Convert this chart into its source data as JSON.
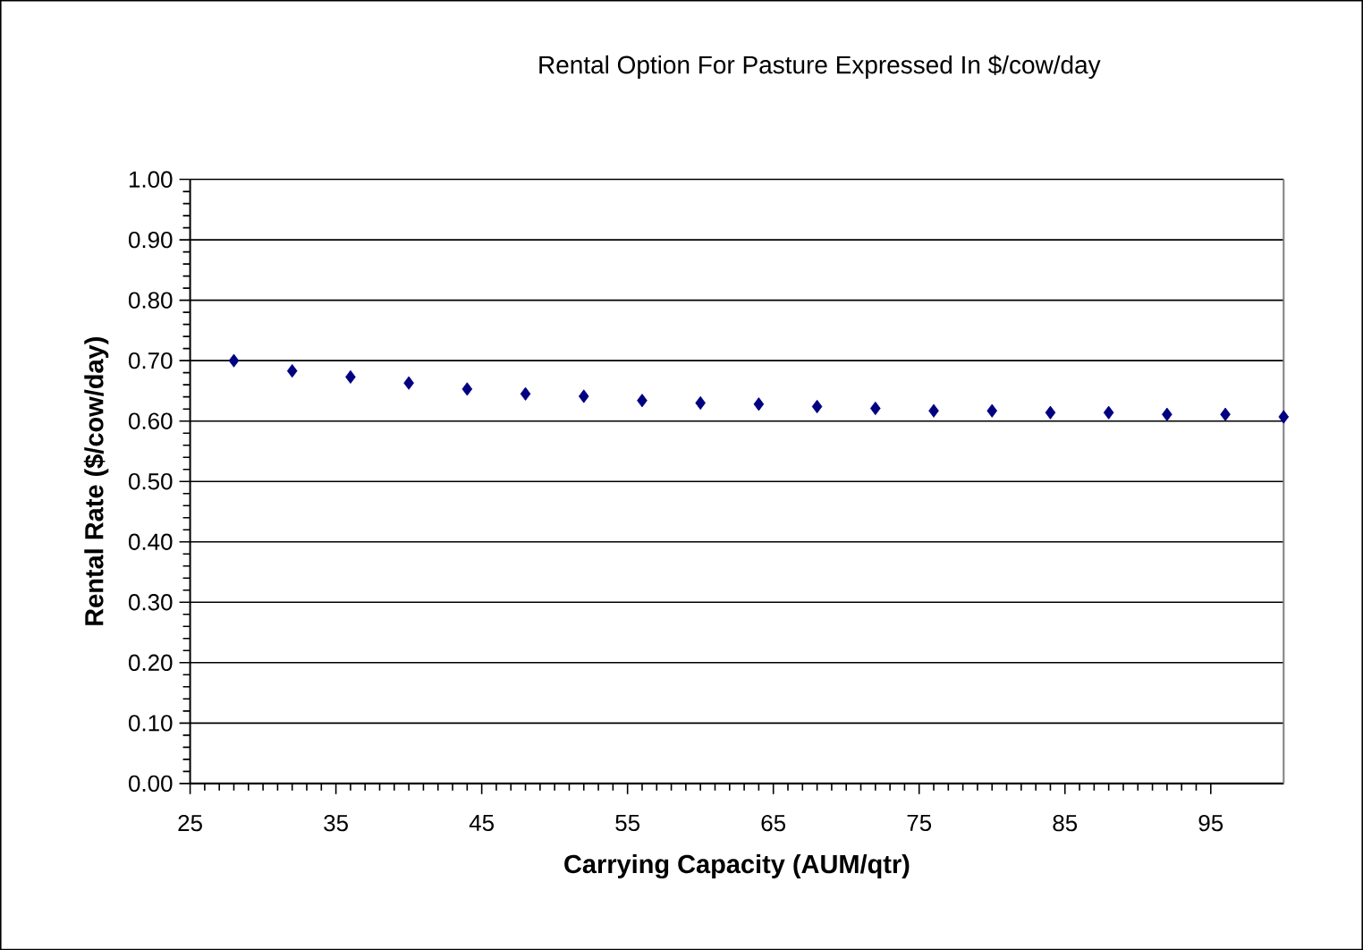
{
  "chart_data": {
    "type": "scatter",
    "title": "Rental Option For Pasture Expressed In $/cow/day",
    "xlabel": "Carrying Capacity (AUM/qtr)",
    "ylabel": "Rental Rate ($/cow/day)",
    "x": [
      28,
      32,
      36,
      40,
      44,
      48,
      52,
      56,
      60,
      64,
      68,
      72,
      76,
      80,
      84,
      88,
      92,
      96,
      100
    ],
    "values": [
      0.7,
      0.683,
      0.673,
      0.663,
      0.653,
      0.645,
      0.641,
      0.634,
      0.63,
      0.628,
      0.624,
      0.621,
      0.617,
      0.617,
      0.614,
      0.614,
      0.611,
      0.611,
      0.607
    ],
    "color": "#000080",
    "marker": "diamond",
    "grid": "y",
    "xlim": [
      25,
      100
    ],
    "xticks": [
      25,
      35,
      45,
      55,
      65,
      75,
      85,
      95
    ],
    "ylim": [
      0,
      1
    ],
    "yticks": [
      {
        "value": 0,
        "label": "0.00"
      },
      {
        "value": 0.1,
        "label": "0.10"
      },
      {
        "value": 0.2,
        "label": "0.20"
      },
      {
        "value": 0.3,
        "label": "0.30"
      },
      {
        "value": 0.4,
        "label": "0.40"
      },
      {
        "value": 0.5,
        "label": "0.50"
      },
      {
        "value": 0.6,
        "label": "0.60"
      },
      {
        "value": 0.7,
        "label": "0.70"
      },
      {
        "value": 0.8,
        "label": "0.80"
      },
      {
        "value": 0.9,
        "label": "0.90"
      },
      {
        "value": 1,
        "label": "1.00"
      }
    ]
  }
}
